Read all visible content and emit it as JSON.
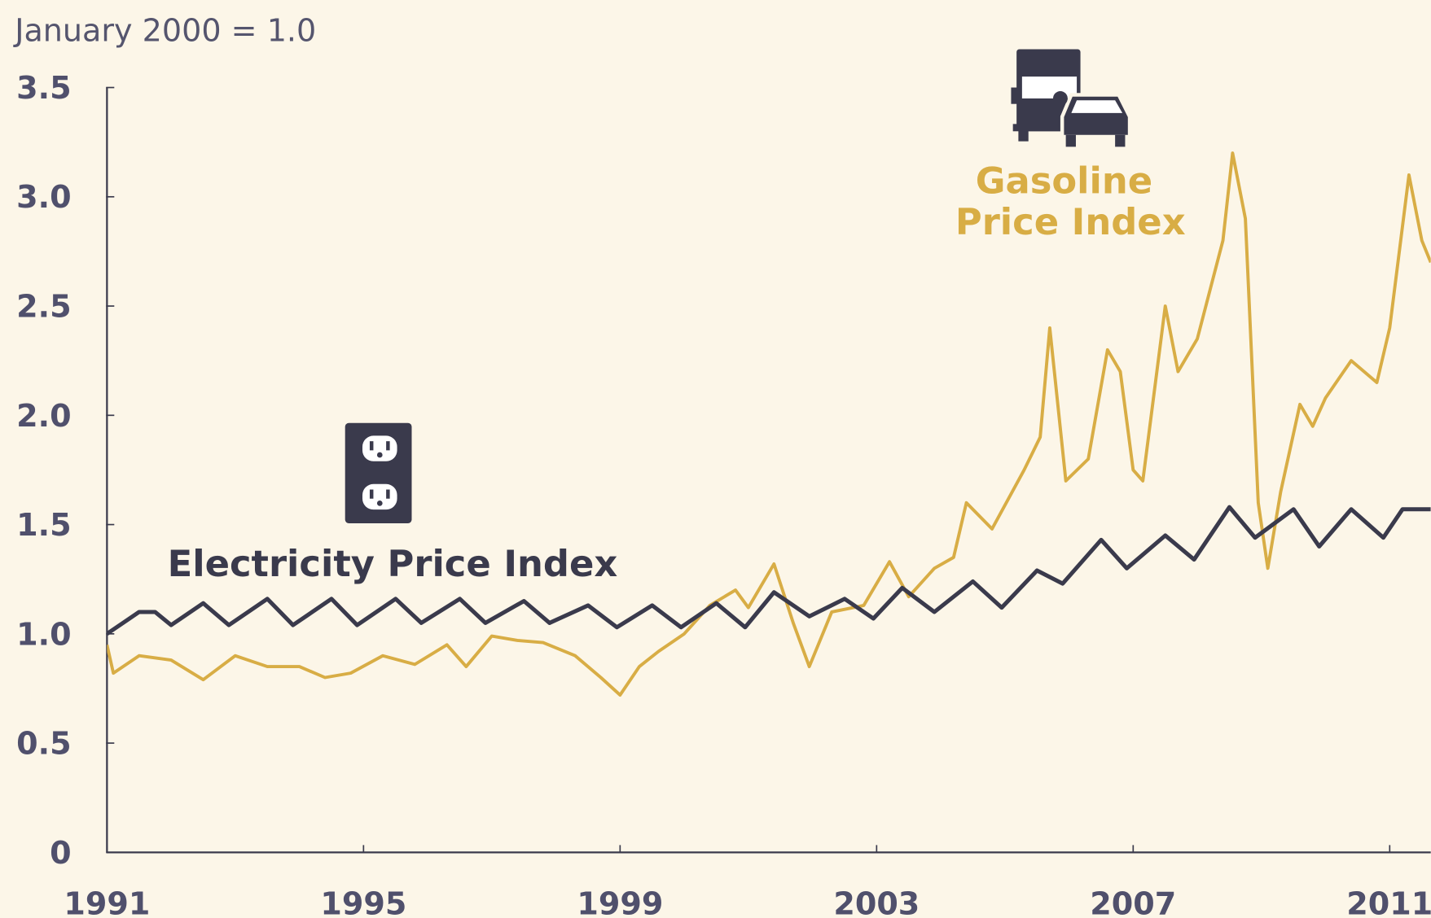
{
  "chart_data": {
    "type": "line",
    "subtitle": "January 2000 = 1.0",
    "xlim": [
      1991,
      2011.64
    ],
    "xticks": [
      1991,
      1995,
      1999,
      2003,
      2007,
      2011
    ],
    "ylim": [
      0,
      3.5
    ],
    "yticks": [
      0,
      0.5,
      {
        "value": 1,
        "label": "1.0"
      },
      1.5,
      {
        "value": 2,
        "label": "2.0"
      },
      2.5,
      {
        "value": 3,
        "label": "3.0"
      },
      3.5
    ],
    "series": [
      {
        "name": "Electricity Price Index",
        "color": "#3a3a4c",
        "x": [
          1991.0,
          1991.5,
          1991.75,
          1992.0,
          1992.5,
          1992.9,
          1993.5,
          1993.9,
          1994.5,
          1994.9,
          1995.5,
          1995.9,
          1996.5,
          1996.9,
          1997.5,
          1997.9,
          1998.5,
          1998.95,
          1999.5,
          1999.95,
          2000.5,
          2000.95,
          2001.4,
          2001.95,
          2002.5,
          2002.95,
          2003.4,
          2003.9,
          2004.5,
          2004.95,
          2005.5,
          2005.9,
          2006.5,
          2006.9,
          2007.5,
          2007.95,
          2008.5,
          2008.9,
          2009.5,
          2009.9,
          2010.4,
          2010.9,
          2011.2,
          2011.64
        ],
        "values": [
          1.0,
          1.1,
          1.1,
          1.04,
          1.14,
          1.04,
          1.16,
          1.04,
          1.16,
          1.04,
          1.16,
          1.05,
          1.16,
          1.05,
          1.15,
          1.05,
          1.13,
          1.03,
          1.13,
          1.03,
          1.14,
          1.03,
          1.19,
          1.08,
          1.16,
          1.07,
          1.21,
          1.1,
          1.24,
          1.12,
          1.29,
          1.23,
          1.43,
          1.3,
          1.45,
          1.34,
          1.58,
          1.44,
          1.57,
          1.4,
          1.57,
          1.44,
          1.57,
          1.57
        ]
      },
      {
        "name": "Gasoline Price Index",
        "color": "#d8ad45",
        "x": [
          1991.0,
          1991.1,
          1991.5,
          1992.0,
          1992.5,
          1993.0,
          1993.5,
          1994.0,
          1994.4,
          1994.8,
          1995.3,
          1995.8,
          1996.3,
          1996.6,
          1997.0,
          1997.4,
          1997.8,
          1998.3,
          1998.7,
          1999.0,
          1999.3,
          1999.6,
          2000.0,
          2000.4,
          2000.8,
          2001.0,
          2001.4,
          2001.7,
          2001.95,
          2002.3,
          2002.8,
          2003.2,
          2003.5,
          2003.9,
          2004.2,
          2004.4,
          2004.8,
          2005.3,
          2005.55,
          2005.7,
          2005.95,
          2006.3,
          2006.6,
          2006.8,
          2007.0,
          2007.15,
          2007.5,
          2007.7,
          2008.0,
          2008.4,
          2008.55,
          2008.75,
          2008.95,
          2009.1,
          2009.3,
          2009.6,
          2009.8,
          2010.0,
          2010.4,
          2010.8,
          2011.0,
          2011.3,
          2011.5,
          2011.64
        ],
        "values": [
          0.95,
          0.82,
          0.9,
          0.88,
          0.79,
          0.9,
          0.85,
          0.85,
          0.8,
          0.82,
          0.9,
          0.86,
          0.95,
          0.85,
          0.99,
          0.97,
          0.96,
          0.9,
          0.8,
          0.72,
          0.85,
          0.92,
          1.0,
          1.13,
          1.2,
          1.12,
          1.32,
          1.05,
          0.85,
          1.1,
          1.13,
          1.33,
          1.17,
          1.3,
          1.35,
          1.6,
          1.48,
          1.75,
          1.9,
          2.4,
          1.7,
          1.8,
          2.3,
          2.2,
          1.75,
          1.7,
          2.5,
          2.2,
          2.35,
          2.8,
          3.2,
          2.9,
          1.6,
          1.3,
          1.65,
          2.05,
          1.95,
          2.08,
          2.25,
          2.15,
          2.4,
          3.1,
          2.8,
          2.7
        ]
      }
    ]
  }
}
